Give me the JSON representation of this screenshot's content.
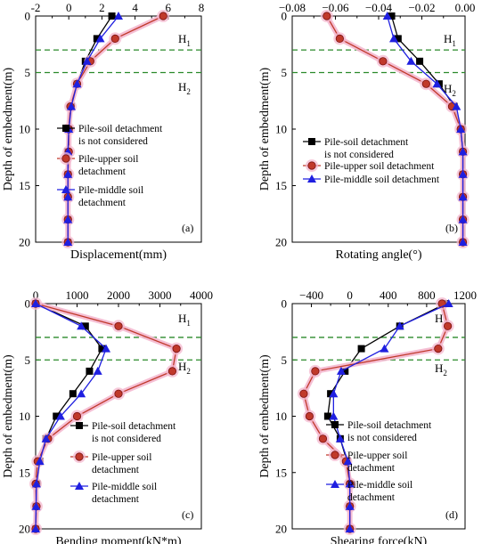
{
  "figure": {
    "hlayers": [
      {
        "main": "H",
        "sub": "1"
      },
      {
        "main": "H",
        "sub": "2"
      }
    ],
    "series_styles": [
      {
        "color": "#000000",
        "marker": "square",
        "glow": "none"
      },
      {
        "color": "#c0392b",
        "marker": "circle",
        "glow": "#f4b8cf"
      },
      {
        "color": "#1f1fe0",
        "marker": "triangle",
        "glow": "none"
      }
    ],
    "colors": {
      "dashed_line": "#2a8a2a"
    }
  },
  "chart_data": [
    {
      "type": "line",
      "panel": "(a)",
      "xlabel": "Displacement(mm)",
      "ylabel": "Depth of embedment(m)",
      "xlim": [
        -2,
        8
      ],
      "xticks": [
        -2,
        0,
        2,
        4,
        6,
        8
      ],
      "ylim": [
        0,
        20
      ],
      "yticks": [
        0,
        5,
        10,
        15,
        20
      ],
      "xaxis_position": "top",
      "dashed_depths": [
        3,
        5
      ],
      "legend_position": "middle-right",
      "series": [
        {
          "name": "Pile-soil detachment is not considered",
          "legend_lines": [
            "Pile-soil detachment",
            "is not considered"
          ],
          "x": [
            2.6,
            1.7,
            1.0,
            0.5,
            0.15,
            0.0,
            -0.05,
            -0.05,
            -0.05,
            -0.05,
            -0.05
          ],
          "y": [
            0,
            2,
            4,
            6,
            8,
            10,
            12,
            14,
            16,
            18,
            20
          ]
        },
        {
          "name": "Pile-upper soil detachment",
          "legend_lines": [
            "Pile-upper soil",
            "detachment"
          ],
          "x": [
            5.7,
            2.8,
            1.3,
            0.5,
            0.1,
            0.0,
            0.0,
            -0.05,
            -0.05,
            -0.05,
            -0.05
          ],
          "y": [
            0,
            2,
            4,
            6,
            8,
            10,
            12,
            14,
            16,
            18,
            20
          ]
        },
        {
          "name": "Pile-middle soil detachment",
          "legend_lines": [
            "Pile-middle soil",
            "detachment"
          ],
          "x": [
            3.0,
            1.9,
            1.1,
            0.5,
            0.15,
            0.0,
            -0.05,
            -0.05,
            -0.05,
            -0.05,
            -0.05
          ],
          "y": [
            0,
            2,
            4,
            6,
            8,
            10,
            12,
            14,
            16,
            18,
            20
          ]
        }
      ]
    },
    {
      "type": "line",
      "panel": "(b)",
      "xlabel": "Rotating angle(°)",
      "ylabel": "Depth of embedment(m)",
      "xlim": [
        -0.08,
        0.0
      ],
      "xticks": [
        -0.08,
        -0.06,
        -0.04,
        -0.02,
        0.0
      ],
      "xtick_labels": [
        "−0.08",
        "−0.06",
        "−0.04",
        "−0.02",
        "0.00"
      ],
      "ylim": [
        0,
        20
      ],
      "yticks": [
        0,
        5,
        10,
        15,
        20
      ],
      "xaxis_position": "top",
      "dashed_depths": [
        3,
        5
      ],
      "legend_position": "middle-right",
      "series": [
        {
          "name": "Pile-soil detachment is not considered",
          "legend_lines": [
            "Pile-soil detachment",
            "is not considered"
          ],
          "x": [
            -0.034,
            -0.031,
            -0.021,
            -0.012,
            -0.005,
            -0.002,
            -0.001,
            -0.001,
            -0.001,
            -0.001,
            -0.001
          ],
          "y": [
            0,
            2,
            4,
            6,
            8,
            10,
            12,
            14,
            16,
            18,
            20
          ]
        },
        {
          "name": "Pile-upper soil detachment",
          "legend_lines": [
            "Pile-upper soil detachment"
          ],
          "x": [
            -0.064,
            -0.058,
            -0.038,
            -0.018,
            -0.006,
            -0.002,
            -0.001,
            -0.001,
            -0.001,
            -0.001,
            -0.001
          ],
          "y": [
            0,
            2,
            4,
            6,
            8,
            10,
            12,
            14,
            16,
            18,
            20
          ]
        },
        {
          "name": "Pile-middle soil detachment",
          "legend_lines": [
            "Pile-middle soil detachment"
          ],
          "x": [
            -0.036,
            -0.033,
            -0.025,
            -0.013,
            -0.004,
            -0.002,
            -0.001,
            -0.001,
            -0.001,
            -0.001,
            -0.001
          ],
          "y": [
            0,
            2,
            4,
            6,
            8,
            10,
            12,
            14,
            16,
            18,
            20
          ]
        }
      ]
    },
    {
      "type": "line",
      "panel": "(c)",
      "xlabel": "Bending moment(kN*m)",
      "ylabel": "Depth of embedment(m)",
      "xlim": [
        0,
        4000
      ],
      "xticks": [
        0,
        1000,
        2000,
        3000,
        4000
      ],
      "ylim": [
        0,
        20
      ],
      "yticks": [
        0,
        5,
        10,
        15,
        20
      ],
      "xaxis_position": "top",
      "dashed_depths": [
        3,
        5
      ],
      "legend_position": "lower-right",
      "series": [
        {
          "name": "Pile-soil detachment is not considered",
          "legend_lines": [
            "Pile-soil detachment",
            "is not considered"
          ],
          "x": [
            0,
            1200,
            1600,
            1300,
            900,
            500,
            250,
            100,
            30,
            10,
            0
          ],
          "y": [
            0,
            2,
            4,
            6,
            8,
            10,
            12,
            14,
            16,
            18,
            20
          ]
        },
        {
          "name": "Pile-upper soil detachment",
          "legend_lines": [
            "Pile-upper soil",
            "detachment"
          ],
          "x": [
            0,
            2000,
            3400,
            3300,
            2000,
            1000,
            300,
            50,
            0,
            20,
            0
          ],
          "y": [
            0,
            2,
            4,
            6,
            8,
            10,
            12,
            14,
            16,
            18,
            20
          ]
        },
        {
          "name": "Pile-middle soil detachment",
          "legend_lines": [
            "Pile-middle soil",
            "detachment"
          ],
          "x": [
            0,
            1100,
            1700,
            1500,
            1100,
            600,
            250,
            100,
            20,
            10,
            0
          ],
          "y": [
            0,
            2,
            4,
            6,
            8,
            10,
            12,
            14,
            16,
            18,
            20
          ]
        }
      ]
    },
    {
      "type": "line",
      "panel": "(d)",
      "xlabel": "Shearing force(kN)",
      "ylabel": "Depth of embedment(m)",
      "xlim": [
        -600,
        1200
      ],
      "xticks": [
        -400,
        0,
        400,
        800,
        1200
      ],
      "xtick_labels": [
        "−400",
        "0",
        "400",
        "800",
        "1200"
      ],
      "ylim": [
        0,
        20
      ],
      "yticks": [
        0,
        5,
        10,
        15,
        20
      ],
      "xaxis_position": "top",
      "dashed_depths": [
        3,
        5
      ],
      "legend_position": "lower-right",
      "series": [
        {
          "name": "Pile-soil detachment is not considered",
          "legend_lines": [
            "Pile-soil detachment",
            "is not considered"
          ],
          "x": [
            1000,
            520,
            120,
            -50,
            -200,
            -230,
            -100,
            -30,
            0,
            0,
            0
          ],
          "y": [
            0,
            2,
            4,
            6,
            8,
            10,
            12,
            14,
            16,
            18,
            20
          ]
        },
        {
          "name": "Pile-upper soil detachment",
          "legend_lines": [
            "Pile-upper soil",
            "detachment"
          ],
          "x": [
            960,
            1020,
            920,
            -360,
            -480,
            -420,
            -280,
            -40,
            0,
            0,
            0
          ],
          "y": [
            0,
            2,
            4,
            6,
            8,
            10,
            12,
            14,
            16,
            18,
            20
          ]
        },
        {
          "name": "Pile-middle soil detachment",
          "legend_lines": [
            "Pile-middle soil",
            "detachment"
          ],
          "x": [
            1030,
            520,
            360,
            -90,
            -170,
            -170,
            -100,
            -20,
            0,
            0,
            0
          ],
          "y": [
            0,
            2,
            4,
            6,
            8,
            10,
            12,
            14,
            16,
            18,
            20
          ]
        }
      ]
    }
  ]
}
